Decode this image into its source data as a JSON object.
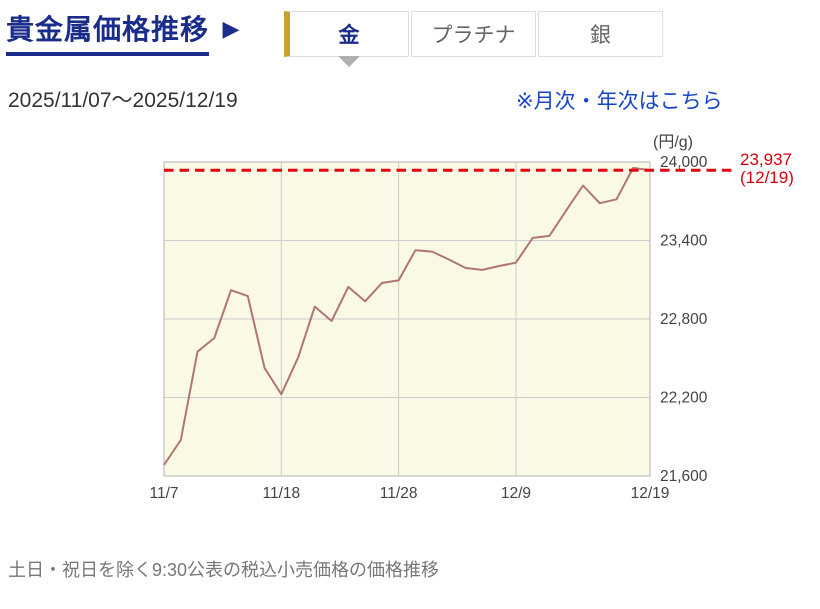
{
  "header": {
    "title": "貴金属価格推移",
    "title_arrow": "▶",
    "tabs": [
      {
        "label": "金",
        "active": true
      },
      {
        "label": "プラチナ",
        "active": false
      },
      {
        "label": "銀",
        "active": false
      }
    ]
  },
  "subheader": {
    "date_range": "2025/11/07～2025/12/19",
    "link": "※月次・年次はこちら"
  },
  "footer": {
    "note": "土日・祝日を除く9:30公表の税込小売価格の価格推移"
  },
  "chart_data": {
    "type": "line",
    "unit_label": "(円/g)",
    "ylim": [
      21600,
      24000
    ],
    "y_ticks": [
      {
        "value": 24000,
        "label": "24,000"
      },
      {
        "value": 23400,
        "label": "23,400"
      },
      {
        "value": 22800,
        "label": "22,800"
      },
      {
        "value": 22200,
        "label": "22,200"
      },
      {
        "value": 21600,
        "label": "21,600"
      }
    ],
    "x_ticks": [
      {
        "index": 0,
        "label": "11/7"
      },
      {
        "index": 7,
        "label": "11/18"
      },
      {
        "index": 14,
        "label": "11/28"
      },
      {
        "index": 21,
        "label": "12/9"
      },
      {
        "index": 29,
        "label": "12/19"
      }
    ],
    "x": [
      "11/7",
      "11/10",
      "11/11",
      "11/12",
      "11/13",
      "11/14",
      "11/17",
      "11/18",
      "11/19",
      "11/20",
      "11/21",
      "11/25",
      "11/26",
      "11/27",
      "11/28",
      "12/1",
      "12/2",
      "12/3",
      "12/4",
      "12/5",
      "12/8",
      "12/9",
      "12/10",
      "12/11",
      "12/12",
      "12/15",
      "12/16",
      "12/17",
      "12/18",
      "12/19"
    ],
    "values": [
      21685,
      21875,
      22550,
      22655,
      23020,
      22975,
      22425,
      22225,
      22505,
      22895,
      22785,
      23045,
      22935,
      23075,
      23095,
      23325,
      23315,
      23255,
      23190,
      23175,
      23205,
      23230,
      23420,
      23435,
      23630,
      23820,
      23685,
      23715,
      23955,
      23937
    ],
    "annotation": {
      "value": 23937,
      "value_label": "23,937",
      "date_label": "(12/19)"
    },
    "grid": true,
    "legend": "none",
    "colors": {
      "line": "#b07672",
      "plot_bg": "#faf9e6",
      "grid": "#cccccc",
      "plot_border": "#b3b3b3",
      "dashed_line": "#e60012",
      "annotation_text": "#d7000f",
      "axis_text": "#444444"
    }
  }
}
